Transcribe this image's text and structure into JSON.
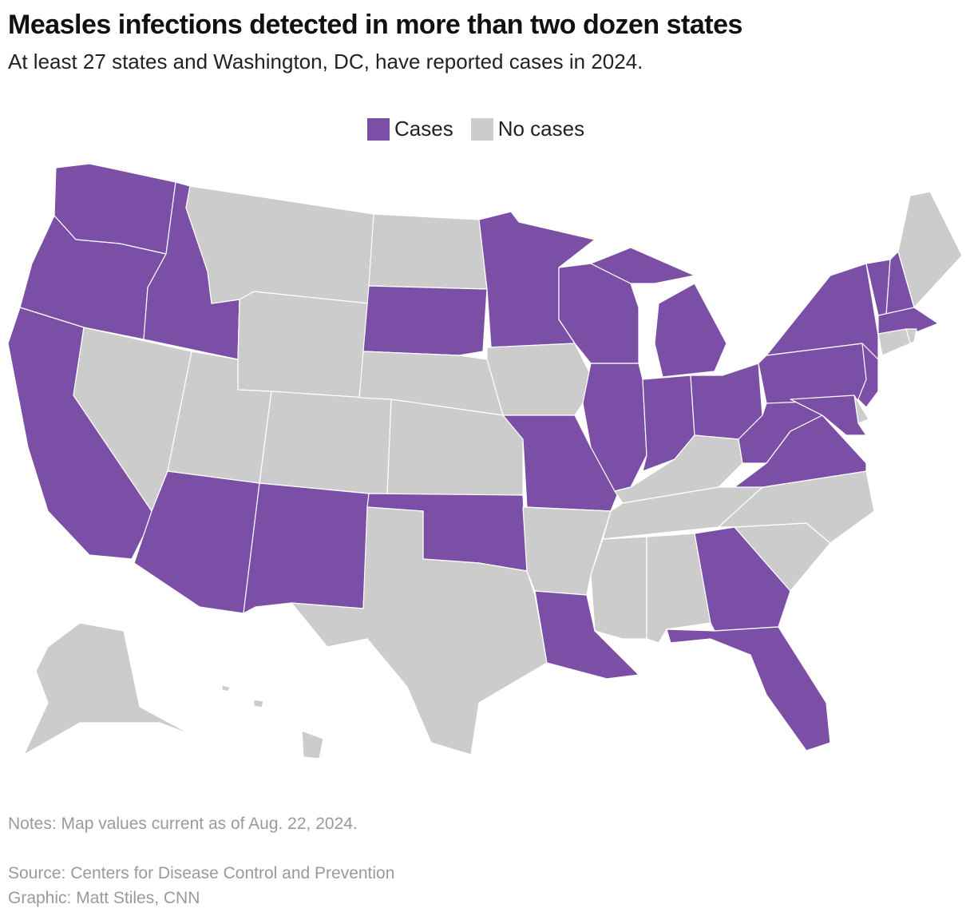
{
  "header": {
    "title": "Measles infections detected in more than two dozen states",
    "subtitle": "At least 27 states and Washington, DC, have reported cases in 2024."
  },
  "legend": [
    {
      "label": "Cases",
      "color": "#7b4fa6"
    },
    {
      "label": "No cases",
      "color": "#cccccc"
    }
  ],
  "footer": {
    "notes": "Notes: Map values current as of Aug. 22, 2024.",
    "source": "Source: Centers for Disease Control and Prevention",
    "credit": "Graphic: Matt Stiles, CNN"
  }
}
